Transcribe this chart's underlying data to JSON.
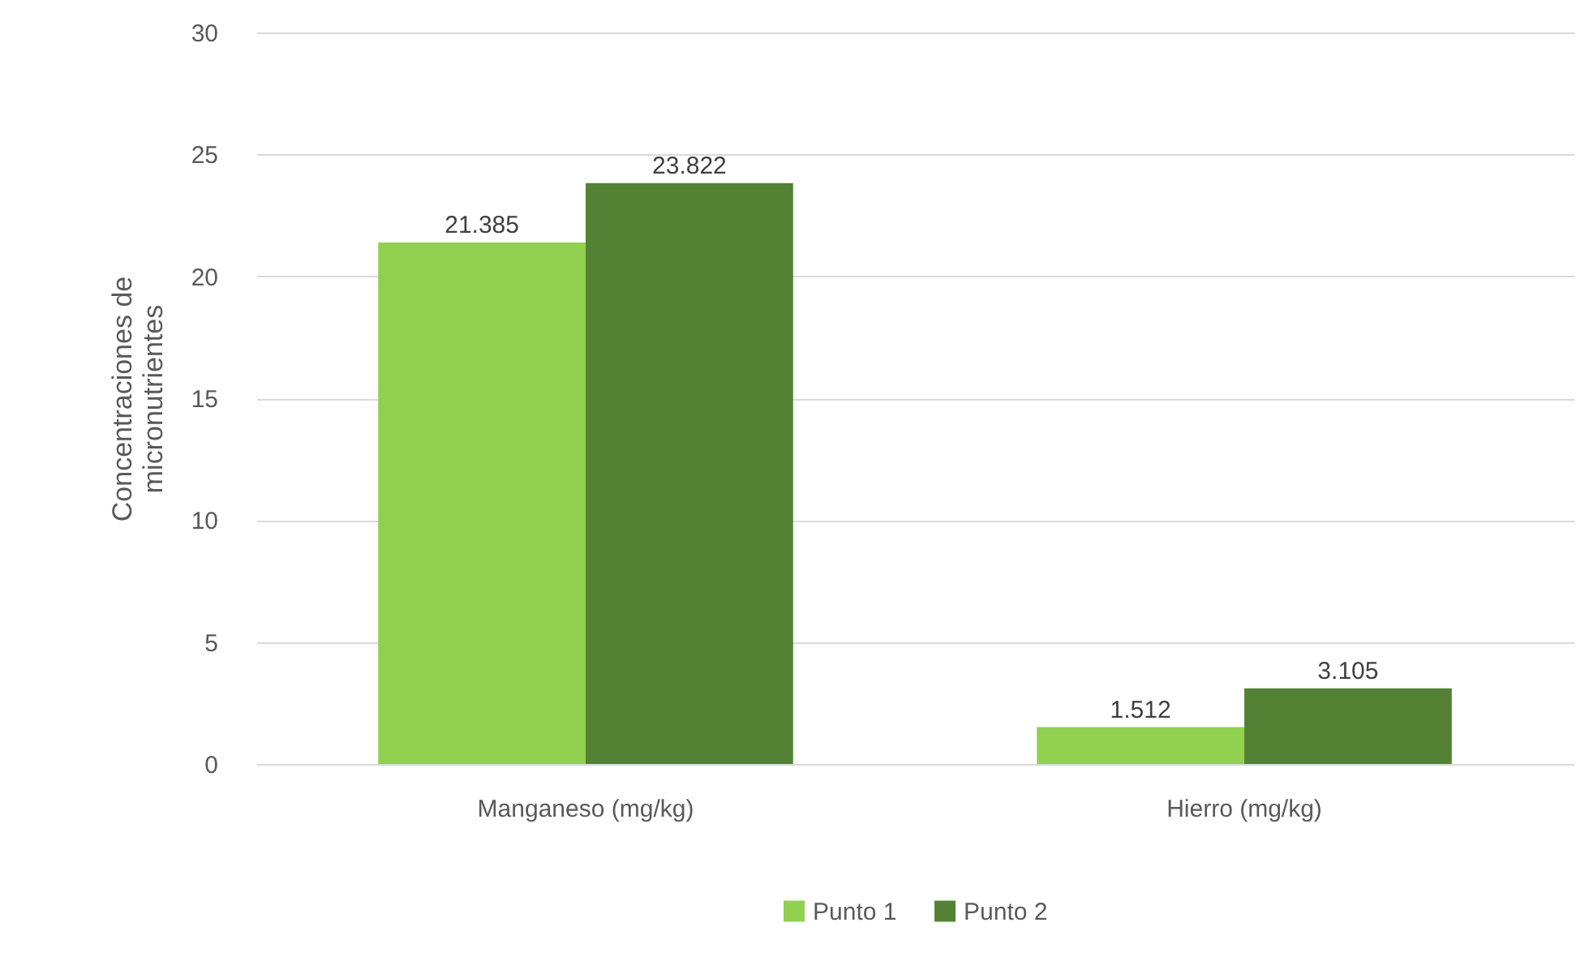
{
  "chart_data": {
    "type": "bar",
    "ylabel": "Concentraciones de micronutrientes",
    "categories": [
      "Manganeso (mg/kg)",
      "Hierro (mg/kg)"
    ],
    "series": [
      {
        "name": "Punto 1",
        "color": "#92d050",
        "values": [
          21.385,
          1.512
        ]
      },
      {
        "name": "Punto 2",
        "color": "#548235",
        "values": [
          23.822,
          3.105
        ]
      }
    ],
    "ylim": [
      0,
      30
    ],
    "yticks": [
      0,
      5,
      10,
      15,
      20,
      25,
      30
    ],
    "grid": "y",
    "legend": "bottom",
    "data_labels": true
  }
}
